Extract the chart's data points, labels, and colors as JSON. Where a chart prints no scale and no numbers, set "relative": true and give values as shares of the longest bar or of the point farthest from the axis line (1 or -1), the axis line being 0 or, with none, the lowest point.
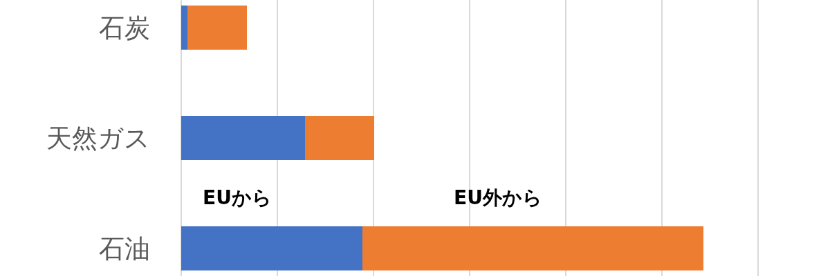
{
  "chart_data": {
    "type": "bar",
    "orientation": "horizontal",
    "stacked": true,
    "relative": true,
    "categories": [
      "石炭",
      "天然ガス",
      "石油"
    ],
    "series": [
      {
        "name": "EUから",
        "color": "#4472c4",
        "values": [
          0.012,
          0.237,
          0.347
        ]
      },
      {
        "name": "EU外から",
        "color": "#ed7d31",
        "values": [
          0.114,
          0.132,
          0.653
        ]
      }
    ],
    "grid": "x"
  }
}
